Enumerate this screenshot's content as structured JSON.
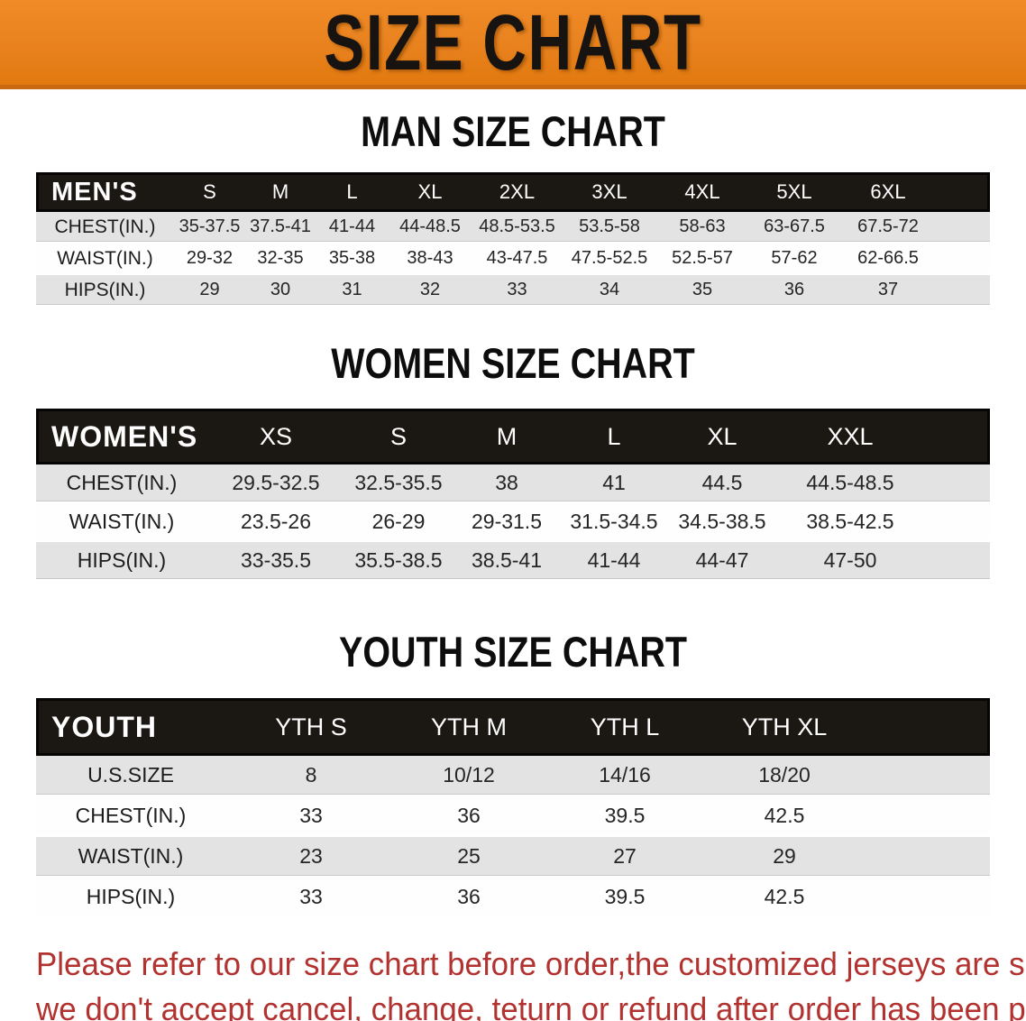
{
  "banner": {
    "title": "SIZE CHART",
    "bg_color": "#E8821E",
    "title_color": "#161311"
  },
  "colors": {
    "header_bar": "#1B1713",
    "row_gray": "#E3E3E3",
    "note_red": "#B23230"
  },
  "sections": [
    {
      "heading": "MAN SIZE CHART",
      "category_label": "MEN'S",
      "sizes": [
        "S",
        "M",
        "L",
        "XL",
        "2XL",
        "3XL",
        "4XL",
        "5XL",
        "6XL"
      ],
      "rows": [
        {
          "label": "CHEST(IN.)",
          "values": [
            "35-37.5",
            "37.5-41",
            "41-44",
            "44-48.5",
            "48.5-53.5",
            "53.5-58",
            "58-63",
            "63-67.5",
            "67.5-72"
          ]
        },
        {
          "label": "WAIST(IN.)",
          "values": [
            "29-32",
            "32-35",
            "35-38",
            "38-43",
            "43-47.5",
            "47.5-52.5",
            "52.5-57",
            "57-62",
            "62-66.5"
          ]
        },
        {
          "label": "HIPS(IN.)",
          "values": [
            "29",
            "30",
            "31",
            "32",
            "33",
            "34",
            "35",
            "36",
            "37"
          ]
        }
      ]
    },
    {
      "heading": "WOMEN SIZE CHART",
      "category_label": "WOMEN'S",
      "sizes": [
        "XS",
        "S",
        "M",
        "L",
        "XL",
        "XXL"
      ],
      "rows": [
        {
          "label": "CHEST(IN.)",
          "values": [
            "29.5-32.5",
            "32.5-35.5",
            "38",
            "41",
            "44.5",
            "44.5-48.5"
          ]
        },
        {
          "label": "WAIST(IN.)",
          "values": [
            "23.5-26",
            "26-29",
            "29-31.5",
            "31.5-34.5",
            "34.5-38.5",
            "38.5-42.5"
          ]
        },
        {
          "label": "HIPS(IN.)",
          "values": [
            "33-35.5",
            "35.5-38.5",
            "38.5-41",
            "41-44",
            "44-47",
            "47-50"
          ]
        }
      ]
    },
    {
      "heading": "YOUTH SIZE CHART",
      "category_label": "YOUTH",
      "sizes": [
        "YTH S",
        "YTH M",
        "YTH L",
        "YTH XL"
      ],
      "rows": [
        {
          "label": "U.S.SIZE",
          "values": [
            "8",
            "10/12",
            "14/16",
            "18/20"
          ]
        },
        {
          "label": "CHEST(IN.)",
          "values": [
            "33",
            "36",
            "39.5",
            "42.5"
          ]
        },
        {
          "label": "WAIST(IN.)",
          "values": [
            "23",
            "25",
            "27",
            "29"
          ]
        },
        {
          "label": "HIPS(IN.)",
          "values": [
            "33",
            "36",
            "39.5",
            "42.5"
          ]
        }
      ]
    }
  ],
  "footer": {
    "line1": "Please refer to our size chart before order,the customized jerseys are special products,",
    "line2": "we don't accept cancel, change, teturn or refund after order has been placed!"
  }
}
